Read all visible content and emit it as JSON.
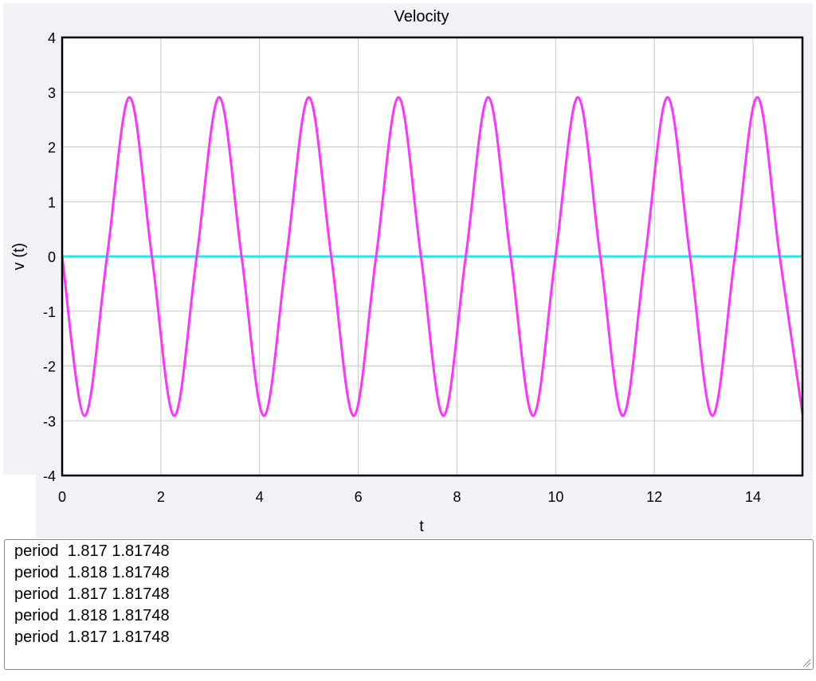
{
  "chart_data": {
    "type": "line",
    "title": "Velocity",
    "xlabel": "t",
    "ylabel": "v (t)",
    "xlim": [
      0,
      15
    ],
    "ylim": [
      -4,
      4
    ],
    "xticks": [
      0,
      2,
      4,
      6,
      8,
      10,
      12,
      14
    ],
    "yticks": [
      4,
      3,
      2,
      1,
      0,
      -1,
      -2,
      -3,
      -4
    ],
    "grid": true,
    "series": [
      {
        "color": "#ff33ff",
        "x": [
          0,
          0.455,
          0.909,
          1.364,
          1.818,
          2.272,
          2.726,
          3.181,
          3.635,
          4.089,
          4.544,
          4.998,
          5.452,
          5.907,
          6.361,
          6.815,
          7.27,
          7.724,
          8.178,
          8.633,
          9.087,
          9.541,
          9.996,
          10.45,
          10.904,
          11.359,
          11.813,
          12.267,
          12.722,
          13.176,
          13.63,
          14.085,
          14.539,
          15
        ],
        "y": [
          0,
          -2.91,
          0,
          2.91,
          0,
          -2.91,
          0,
          2.91,
          0,
          -2.91,
          0,
          2.91,
          0,
          -2.91,
          0,
          2.91,
          0,
          -2.91,
          0,
          2.91,
          0,
          -2.91,
          0,
          2.91,
          0,
          -2.91,
          0,
          2.91,
          0,
          -2.91,
          0,
          2.91,
          0,
          -2.87
        ]
      },
      {
        "color": "#1ee8f0",
        "x": [
          0,
          15
        ],
        "y": [
          0,
          0
        ]
      }
    ]
  },
  "log": {
    "lines": [
      "period  1.817 1.81748",
      "period  1.818 1.81748",
      "period  1.817 1.81748",
      "period  1.818 1.81748",
      "period  1.817 1.81748"
    ]
  }
}
